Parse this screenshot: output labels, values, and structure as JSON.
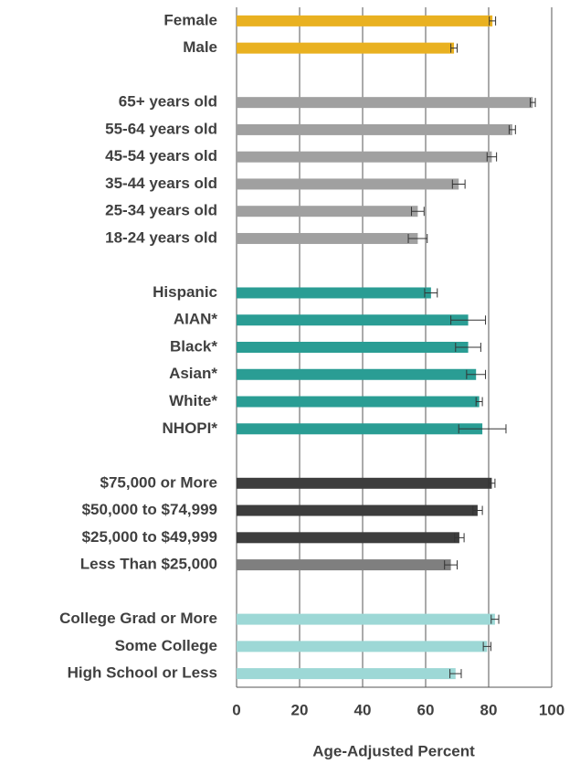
{
  "chart_data": {
    "type": "bar",
    "orientation": "horizontal",
    "categories": [
      "Female",
      "Male",
      null,
      "65+ years old",
      "55-64 years old",
      "45-54 years old",
      "35-44 years old",
      "25-34 years old",
      "18-24 years old",
      null,
      "Hispanic",
      "AIAN*",
      "Black*",
      "Asian*",
      "White*",
      "NHOPI*",
      null,
      "$75,000 or More",
      "$50,000 to $74,999",
      "$25,000 to $49,999",
      "Less Than $25,000",
      null,
      "College Grad or More",
      "Some College",
      "High School or Less"
    ],
    "values": [
      81.2,
      69,
      null,
      94,
      87.5,
      81,
      70.5,
      57.5,
      57.5,
      null,
      61.7,
      73.5,
      73.5,
      76,
      77,
      78,
      null,
      81,
      76.5,
      70.7,
      68,
      null,
      82,
      79.5,
      69.5
    ],
    "errors": [
      1,
      1,
      null,
      0.8,
      1,
      1.5,
      2,
      2,
      3,
      null,
      2,
      5.5,
      4,
      3,
      1,
      7.5,
      null,
      1,
      1.5,
      1.5,
      2,
      null,
      1.2,
      1.2,
      1.8
    ],
    "colors": [
      "#e9b121",
      "#e9b121",
      null,
      "#a0a0a0",
      "#a0a0a0",
      "#a0a0a0",
      "#a0a0a0",
      "#a0a0a0",
      "#a0a0a0",
      null,
      "#2a9d94",
      "#2a9d94",
      "#2a9d94",
      "#2a9d94",
      "#2a9d94",
      "#2a9d94",
      null,
      "#3d3d3d",
      "#3d3d3d",
      "#3d3d3d",
      "#7f7f7f",
      null,
      "#9dd8d6",
      "#9dd8d6",
      "#9dd8d6"
    ],
    "xlabel": "Age-Adjusted Percent",
    "xlim": [
      0,
      100
    ],
    "xticks": [
      0,
      20,
      40,
      60,
      80,
      100
    ],
    "grid": true
  }
}
